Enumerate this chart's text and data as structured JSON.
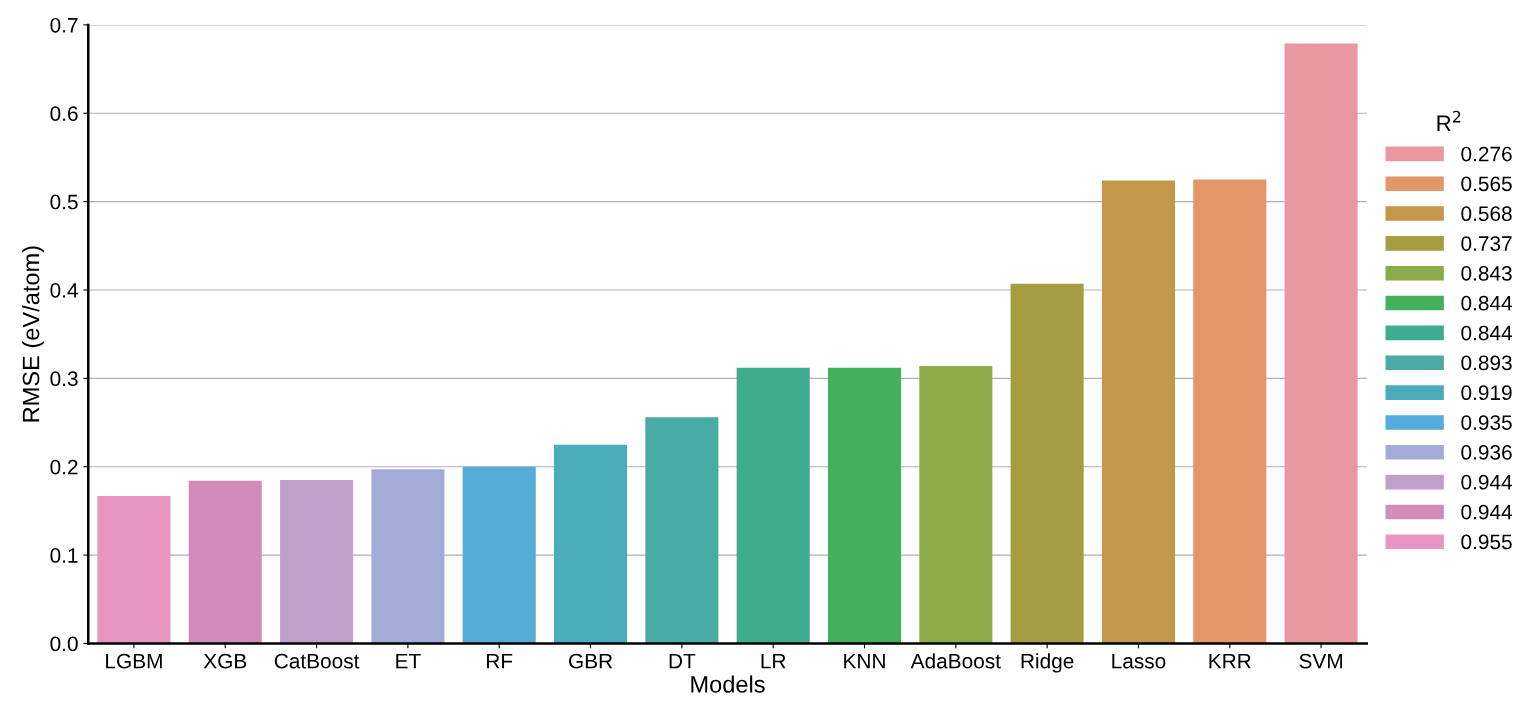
{
  "chart_data": {
    "type": "bar",
    "xlabel": "Models",
    "ylabel": "RMSE (eV/atom)",
    "legend_title": "R$^{2}$",
    "categories": [
      "LGBM",
      "XGB",
      "CatBoost",
      "ET",
      "RF",
      "GBR",
      "DT",
      "LR",
      "KNN",
      "AdaBoost",
      "Ridge",
      "Lasso",
      "KRR",
      "SVM"
    ],
    "series": [
      {
        "name": "0.276",
        "color": "#ea97a1",
        "values": [
          null,
          null,
          null,
          null,
          null,
          null,
          null,
          null,
          null,
          null,
          null,
          null,
          null,
          0.679
        ]
      },
      {
        "name": "0.565",
        "color": "#e5956a",
        "values": [
          null,
          null,
          null,
          null,
          null,
          null,
          null,
          null,
          null,
          null,
          null,
          null,
          0.525,
          null
        ]
      },
      {
        "name": "0.568",
        "color": "#c3984a",
        "values": [
          null,
          null,
          null,
          null,
          null,
          null,
          null,
          null,
          null,
          null,
          null,
          0.524,
          null,
          null
        ]
      },
      {
        "name": "0.737",
        "color": "#a59d43",
        "values": [
          null,
          null,
          null,
          null,
          null,
          null,
          null,
          null,
          null,
          null,
          0.407,
          null,
          null,
          null
        ]
      },
      {
        "name": "0.843",
        "color": "#8aab47",
        "values": [
          null,
          null,
          null,
          null,
          null,
          null,
          null,
          null,
          null,
          0.314,
          null,
          null,
          null,
          null
        ]
      },
      {
        "name": "0.844",
        "color": "#43b15c",
        "values": [
          null,
          null,
          null,
          null,
          null,
          null,
          null,
          null,
          0.312,
          null,
          null,
          null,
          null,
          null
        ]
      },
      {
        "name": "0.844",
        "color": "#40ac8f",
        "values": [
          null,
          null,
          null,
          null,
          null,
          null,
          null,
          0.312,
          null,
          null,
          null,
          null,
          null,
          null
        ]
      },
      {
        "name": "0.893",
        "color": "#48aba6",
        "values": [
          null,
          null,
          null,
          null,
          null,
          null,
          0.256,
          null,
          null,
          null,
          null,
          null,
          null,
          null
        ]
      },
      {
        "name": "0.919",
        "color": "#4aabbc",
        "values": [
          null,
          null,
          null,
          null,
          null,
          0.225,
          null,
          null,
          null,
          null,
          null,
          null,
          null,
          null
        ]
      },
      {
        "name": "0.935",
        "color": "#55acd9",
        "values": [
          null,
          null,
          null,
          null,
          0.2,
          null,
          null,
          null,
          null,
          null,
          null,
          null,
          null,
          null
        ]
      },
      {
        "name": "0.936",
        "color": "#a3acd9",
        "values": [
          null,
          null,
          null,
          0.197,
          null,
          null,
          null,
          null,
          null,
          null,
          null,
          null,
          null,
          null
        ]
      },
      {
        "name": "0.944",
        "color": "#bfa0cb",
        "values": [
          null,
          null,
          0.185,
          null,
          null,
          null,
          null,
          null,
          null,
          null,
          null,
          null,
          null,
          null
        ]
      },
      {
        "name": "0.944",
        "color": "#d18bbd",
        "values": [
          null,
          0.184,
          null,
          null,
          null,
          null,
          null,
          null,
          null,
          null,
          null,
          null,
          null,
          null
        ]
      },
      {
        "name": "0.955",
        "color": "#e896bf",
        "values": [
          0.167,
          null,
          null,
          null,
          null,
          null,
          null,
          null,
          null,
          null,
          null,
          null,
          null,
          null
        ]
      }
    ],
    "ylim": [
      0,
      0.7
    ],
    "yticks": [
      {
        "value": 0,
        "label": "0.0"
      },
      0.1,
      0.2,
      0.3,
      0.4,
      0.5,
      0.6,
      0.7
    ],
    "grid": "y",
    "legend": "right"
  }
}
